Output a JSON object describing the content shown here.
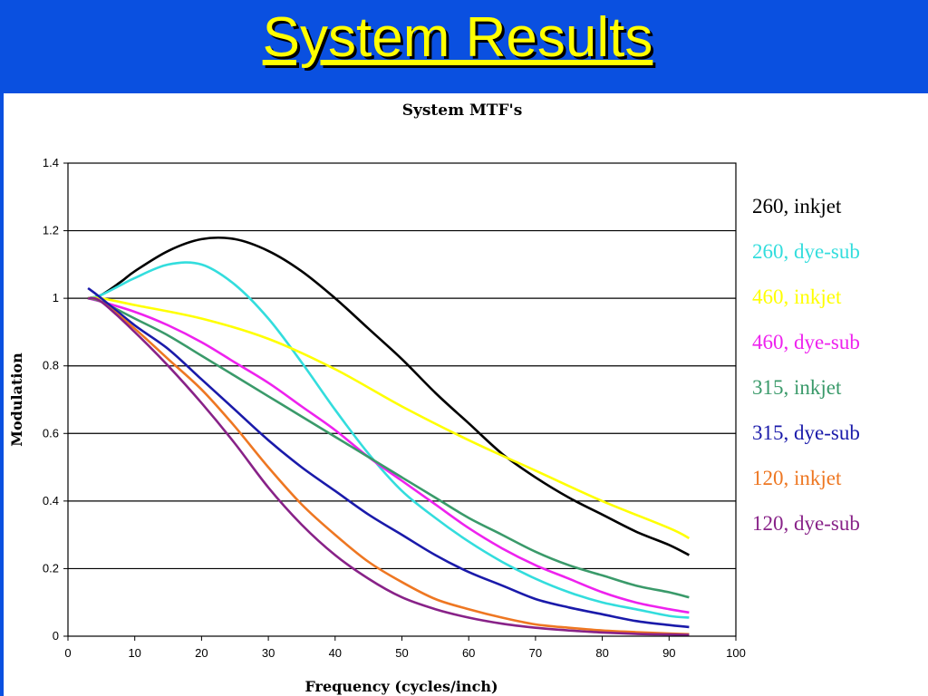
{
  "slide": {
    "title": "System Results",
    "background": "#0a50e0",
    "title_color": "#ffff00"
  },
  "chart_data": {
    "type": "line",
    "title": "System MTF's",
    "xlabel": "Frequency (cycles/inch)",
    "ylabel": "Modulation",
    "xlim": [
      0,
      100
    ],
    "ylim": [
      0,
      1.4
    ],
    "xticks": [
      0,
      10,
      20,
      30,
      40,
      50,
      60,
      70,
      80,
      90,
      100
    ],
    "yticks": [
      0,
      0.2,
      0.4,
      0.6,
      0.8,
      1,
      1.2,
      1.4
    ],
    "ytick_labels": [
      "0",
      "0.2",
      "0.4",
      "0.6",
      "0.8",
      "1",
      "1.2",
      "1.4"
    ],
    "grid": "horizontal",
    "legend_position": "right",
    "series": [
      {
        "name": "260, inkjet",
        "color": "#000000",
        "x": [
          3,
          5,
          8,
          10,
          15,
          20,
          25,
          30,
          35,
          40,
          45,
          50,
          55,
          60,
          65,
          70,
          75,
          80,
          85,
          90,
          93
        ],
        "y": [
          1.0,
          1.01,
          1.05,
          1.08,
          1.14,
          1.175,
          1.175,
          1.14,
          1.08,
          1.0,
          0.91,
          0.82,
          0.72,
          0.63,
          0.54,
          0.47,
          0.41,
          0.36,
          0.31,
          0.27,
          0.24
        ]
      },
      {
        "name": "260, dye-sub",
        "color": "#33dddd",
        "x": [
          3,
          5,
          8,
          10,
          15,
          20,
          25,
          30,
          35,
          40,
          45,
          50,
          55,
          60,
          65,
          70,
          75,
          80,
          85,
          90,
          93
        ],
        "y": [
          1.0,
          1.01,
          1.04,
          1.06,
          1.1,
          1.1,
          1.04,
          0.94,
          0.81,
          0.67,
          0.54,
          0.43,
          0.35,
          0.28,
          0.22,
          0.17,
          0.13,
          0.1,
          0.08,
          0.06,
          0.055
        ]
      },
      {
        "name": "460, inkjet",
        "color": "#ffff00",
        "x": [
          3,
          5,
          10,
          20,
          30,
          40,
          50,
          60,
          70,
          80,
          90,
          93
        ],
        "y": [
          1.0,
          1.0,
          0.98,
          0.94,
          0.88,
          0.79,
          0.68,
          0.58,
          0.49,
          0.4,
          0.32,
          0.29
        ]
      },
      {
        "name": "460, dye-sub",
        "color": "#ee22ee",
        "x": [
          3,
          5,
          10,
          15,
          20,
          25,
          30,
          35,
          40,
          45,
          50,
          55,
          60,
          65,
          70,
          75,
          80,
          85,
          90,
          93
        ],
        "y": [
          1.0,
          0.99,
          0.96,
          0.92,
          0.87,
          0.81,
          0.75,
          0.68,
          0.61,
          0.53,
          0.46,
          0.39,
          0.32,
          0.26,
          0.21,
          0.17,
          0.13,
          0.1,
          0.08,
          0.07
        ]
      },
      {
        "name": "315, inkjet",
        "color": "#3a9a6a",
        "x": [
          3,
          5,
          10,
          15,
          20,
          25,
          30,
          35,
          40,
          45,
          50,
          55,
          60,
          65,
          70,
          75,
          80,
          85,
          90,
          93
        ],
        "y": [
          1.0,
          0.99,
          0.94,
          0.89,
          0.83,
          0.77,
          0.71,
          0.65,
          0.59,
          0.53,
          0.47,
          0.41,
          0.35,
          0.3,
          0.25,
          0.21,
          0.18,
          0.15,
          0.13,
          0.115
        ]
      },
      {
        "name": "315, dye-sub",
        "color": "#1a1aaa",
        "x": [
          3,
          5,
          10,
          15,
          20,
          25,
          30,
          35,
          40,
          45,
          50,
          55,
          60,
          65,
          70,
          75,
          80,
          85,
          90,
          93
        ],
        "y": [
          1.03,
          1.0,
          0.92,
          0.85,
          0.76,
          0.67,
          0.58,
          0.5,
          0.43,
          0.36,
          0.3,
          0.24,
          0.19,
          0.15,
          0.11,
          0.085,
          0.065,
          0.045,
          0.033,
          0.027
        ]
      },
      {
        "name": "120, inkjet",
        "color": "#ee7722",
        "x": [
          3,
          5,
          10,
          15,
          20,
          25,
          30,
          35,
          40,
          45,
          50,
          55,
          60,
          65,
          70,
          75,
          80,
          85,
          90,
          93
        ],
        "y": [
          1.0,
          0.99,
          0.91,
          0.82,
          0.73,
          0.62,
          0.5,
          0.39,
          0.3,
          0.22,
          0.16,
          0.11,
          0.08,
          0.055,
          0.035,
          0.025,
          0.017,
          0.012,
          0.008,
          0.006
        ]
      },
      {
        "name": "120, dye-sub",
        "color": "#882288",
        "x": [
          3,
          5,
          10,
          15,
          20,
          25,
          30,
          35,
          40,
          45,
          50,
          55,
          60,
          65,
          70,
          75,
          80,
          85,
          90,
          93
        ],
        "y": [
          1.0,
          0.99,
          0.9,
          0.8,
          0.69,
          0.57,
          0.44,
          0.33,
          0.24,
          0.17,
          0.115,
          0.08,
          0.055,
          0.037,
          0.025,
          0.017,
          0.011,
          0.007,
          0.005,
          0.004
        ]
      }
    ]
  }
}
